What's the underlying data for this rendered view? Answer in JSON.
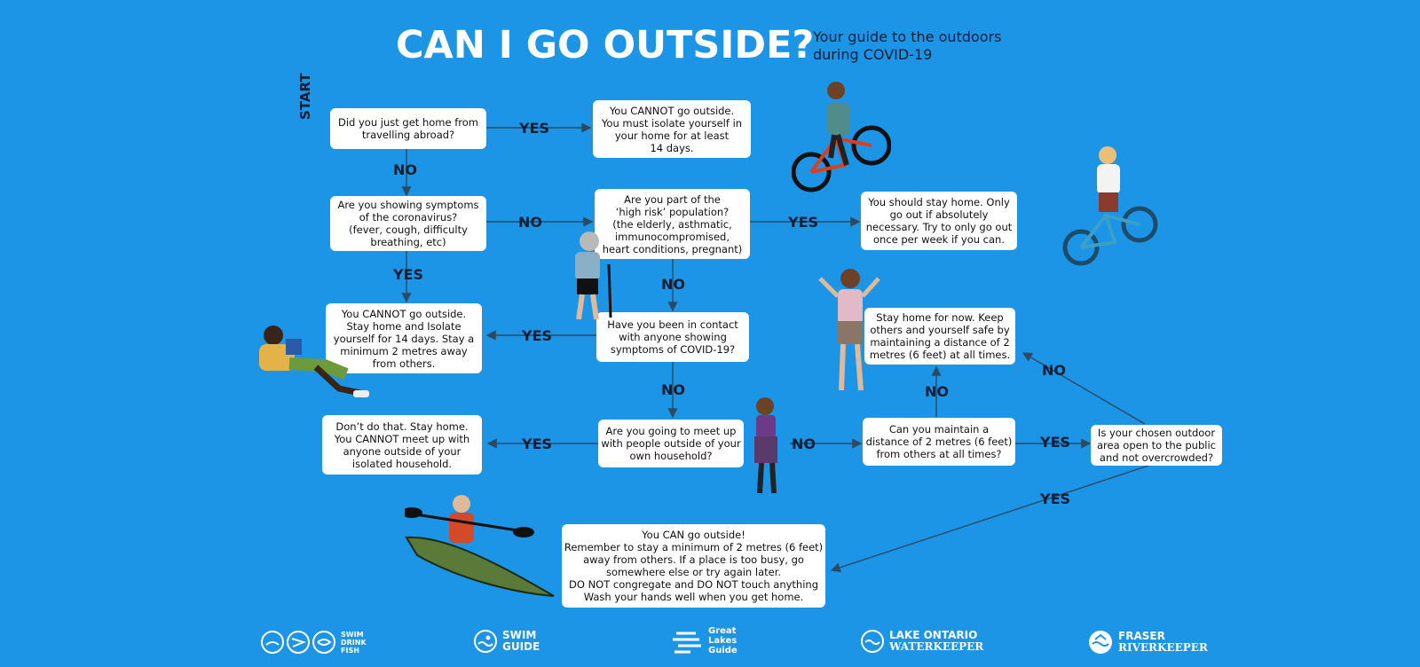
{
  "title": "CAN I GO OUTSIDE?",
  "subtitle": [
    "Your guide to the outdoors",
    "during COVID-19"
  ],
  "start_label": "START",
  "boxes": {
    "q_travel": [
      "Did you just get home from",
      "travelling abroad?"
    ],
    "a_isolate14": [
      "You CANNOT go outside.",
      "You must isolate yourself in",
      "your home for at least",
      "14 days."
    ],
    "q_symptoms": [
      "Are you showing symptoms",
      "of the coronavirus?",
      "(fever, cough, difficulty",
      "breathing, etc)"
    ],
    "q_highrisk": [
      "Are you part of the",
      "‘high risk’ population?",
      "(the elderly, asthmatic,",
      "immunocompromised,",
      "heart conditions, pregnant)"
    ],
    "a_stayhome_once": [
      "You should stay home. Only",
      "go out if absolutely",
      "necessary. Try to only go out",
      "once per week if you can."
    ],
    "a_cannot_symptoms": [
      "You CANNOT go outside.",
      "Stay home and Isolate",
      "yourself for 14 days. Stay a",
      "minimum 2 metres away",
      "from others."
    ],
    "q_contact": [
      "Have you been in contact",
      "with anyone showing",
      "symptoms of COVID-19?"
    ],
    "a_stay_for_now": [
      "Stay home for now. Keep",
      "others and yourself safe by",
      "maintaining a distance of 2",
      "metres (6 feet) at all times."
    ],
    "a_dont": [
      "Don’t do that. Stay home.",
      "You CANNOT meet up with",
      "anyone outside of your",
      "isolated household."
    ],
    "q_meetup": [
      "Are you going to meet up",
      "with people outside of your",
      "own household?"
    ],
    "q_distance": [
      "Can you maintain a",
      "distance of 2 metres (6 feet)",
      "from others at all times?"
    ],
    "q_area": [
      "Is your chosen outdoor",
      "area open to the public",
      "and not overcrowded?"
    ],
    "a_can_go": [
      "You CAN go outside!",
      "Remember to stay a minimum of 2 metres (6 feet)",
      "away from others. If a place is too busy, go",
      "somewhere else or try again later.",
      "DO NOT congregate and DO NOT touch anything",
      "Wash your hands well when you get home."
    ]
  },
  "labels": {
    "yes": "YES",
    "no": "NO"
  },
  "logos": {
    "swim_drink_fish": [
      "SWIM",
      "DRINK",
      "FISH"
    ],
    "swim_guide": [
      "SWIM",
      "GUIDE"
    ],
    "great_lakes_guide": [
      "Great",
      "Lakes",
      "Guide"
    ],
    "lake_ontario": [
      "LAKE ONTARIO",
      "WATERKEEPER"
    ],
    "fraser": [
      "FRASER",
      "RIVERKEEPER"
    ]
  },
  "colors": {
    "background": "#1c95e6",
    "box": "#ffffff",
    "text_dark": "#0b1e33",
    "arrow": "#2b4a63"
  }
}
